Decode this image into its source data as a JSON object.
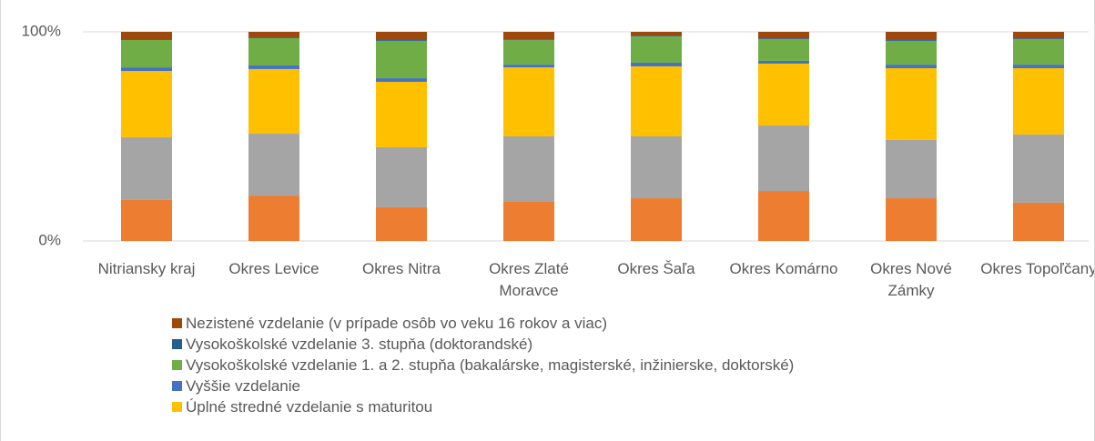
{
  "chart_data": {
    "type": "stacked-bar-percent",
    "categories": [
      "Nitriansky kraj",
      "Okres Levice",
      "Okres Nitra",
      "Okres Zlaté Moravce",
      "Okres Šaľa",
      "Okres Komárno",
      "Okres Nové Zámky",
      "Okres Topoľčany"
    ],
    "series": [
      {
        "color": "#ed7d31",
        "values": [
          19.6,
          21.7,
          16.1,
          18.7,
          20.4,
          23.9,
          20.4,
          18.3
        ]
      },
      {
        "color": "#a5a5a5",
        "values": [
          30.0,
          29.6,
          28.7,
          31.3,
          29.6,
          31.3,
          27.9,
          32.6
        ]
      },
      {
        "name": "Úplné stredné vzdelanie s maturitou",
        "color": "#ffc000",
        "values": [
          31.7,
          30.9,
          31.3,
          33.0,
          33.5,
          29.6,
          34.3,
          31.7
        ]
      },
      {
        "name": "Vyššie vzdelanie",
        "color": "#4472c4",
        "values": [
          1.7,
          1.7,
          1.7,
          1.3,
          1.7,
          1.3,
          1.7,
          1.7
        ]
      },
      {
        "name": "Vysokoškolské vzdelanie 1. a 2. stupňa (bakalárske, magisterské, inžinierske, doktorské)",
        "color": "#70ad47",
        "values": [
          13.1,
          13.1,
          17.9,
          11.7,
          12.6,
          10.4,
          11.4,
          12.2
        ]
      },
      {
        "name": "Vysokoškolské vzdelanie 3. stupňa (doktorandské)",
        "color": "#255e91",
        "values": [
          0.4,
          0.4,
          0.8,
          0.4,
          0.4,
          0.4,
          0.4,
          0.4
        ]
      },
      {
        "name": "Nezistené vzdelanie (v prípade osôb vo veku 16 rokov a viac)",
        "color": "#9e480e",
        "values": [
          3.5,
          2.6,
          3.5,
          3.6,
          1.8,
          3.1,
          3.9,
          3.1
        ]
      }
    ],
    "ylim": [
      0,
      100
    ],
    "yticks": [
      {
        "value": 0,
        "label": "0%"
      },
      {
        "value": 100,
        "label": "100%"
      }
    ],
    "grid": true
  }
}
